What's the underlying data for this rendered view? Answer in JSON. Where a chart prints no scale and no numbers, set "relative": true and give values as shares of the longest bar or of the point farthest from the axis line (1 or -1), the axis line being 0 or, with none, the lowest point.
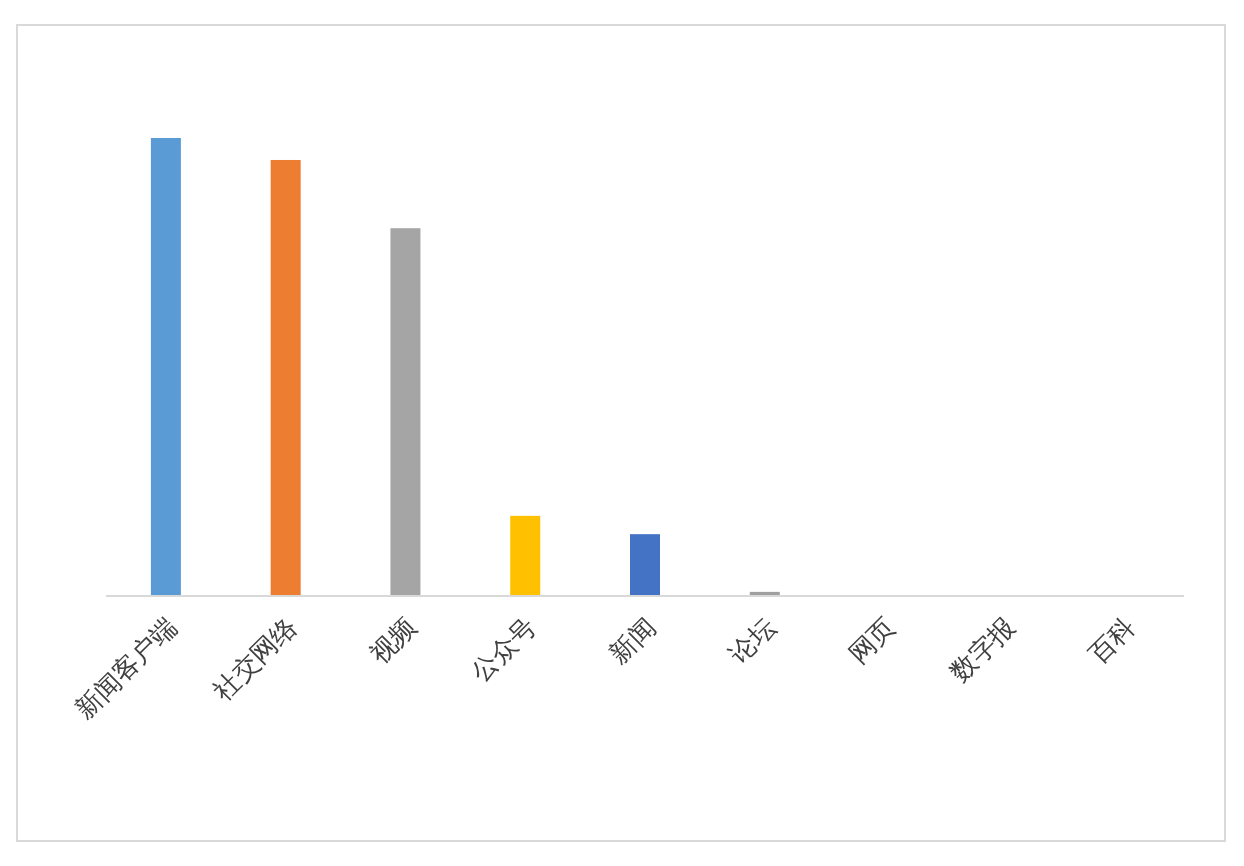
{
  "chart_data": {
    "type": "bar",
    "relative": true,
    "categories": [
      "新闻客户端",
      "社交网络",
      "视频",
      "公众号",
      "新闻",
      "论坛",
      "网页",
      "数字报",
      "百科"
    ],
    "values": [
      1,
      0.952,
      0.803,
      0.175,
      0.135,
      0.009,
      0,
      0,
      0
    ],
    "colors": [
      "#5b9bd5",
      "#ed7d31",
      "#a5a5a5",
      "#ffc000",
      "#4472c4",
      "#a0a0a0",
      "#70ad47",
      "#264478",
      "#9e480e"
    ]
  }
}
